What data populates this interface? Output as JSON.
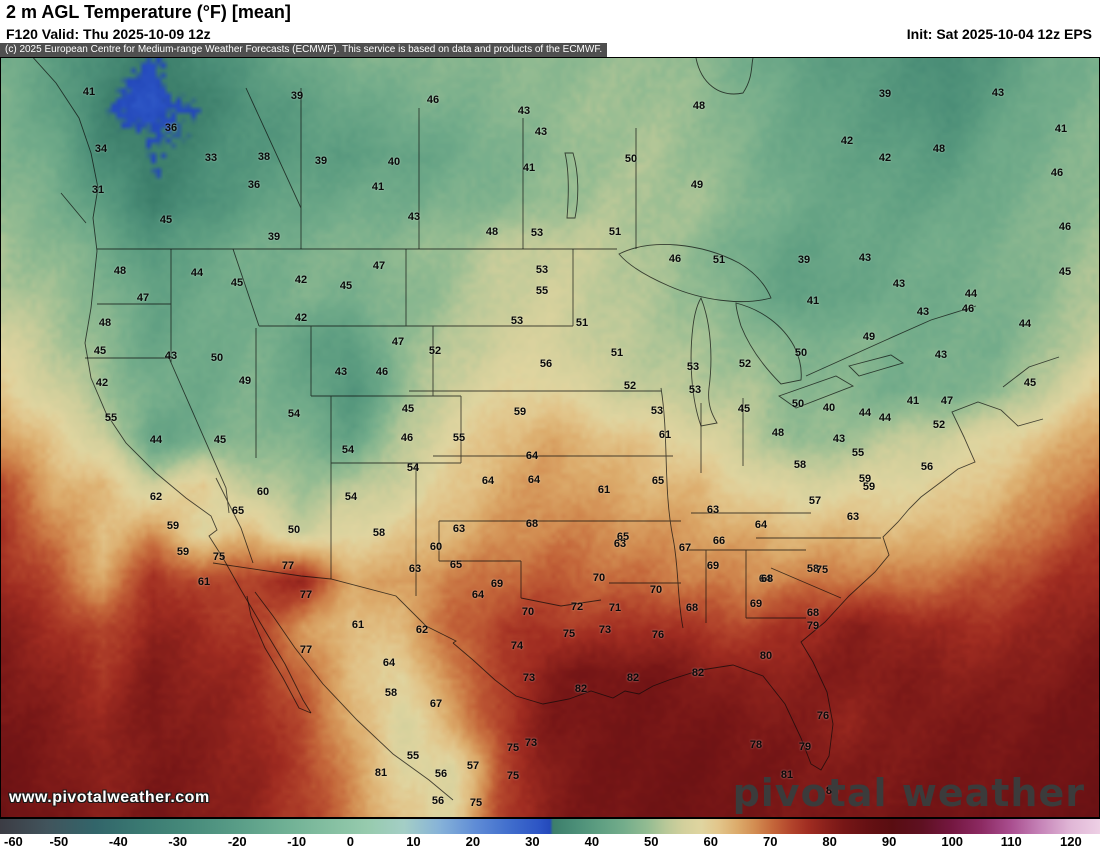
{
  "header": {
    "title": "2 m AGL Temperature (°F) [mean]",
    "valid_line": "F120 Valid: Thu 2025-10-09 12z",
    "init_line": "Init: Sat 2025-10-04 12z EPS",
    "copyright": "(c) 2025 European Centre for Medium-range Weather Forecasts (ECMWF). This service is based on data and products of the ECMWF."
  },
  "watermarks": {
    "site_url": "www.pivotalweather.com",
    "brand": "pivotal weather"
  },
  "colorbar": {
    "unit": "°F",
    "min": -60,
    "max": 120,
    "span": 185,
    "ticks": [
      -60,
      -50,
      -40,
      -30,
      -20,
      -10,
      0,
      10,
      20,
      30,
      40,
      50,
      60,
      70,
      80,
      90,
      100,
      110,
      120
    ]
  },
  "colormap": [
    [
      -60,
      "#3c3c44"
    ],
    [
      -52,
      "#41545c"
    ],
    [
      -44,
      "#32656a"
    ],
    [
      -36,
      "#3a7a72"
    ],
    [
      -28,
      "#478b7b"
    ],
    [
      -20,
      "#599d87"
    ],
    [
      -12,
      "#6fb094"
    ],
    [
      -4,
      "#86c0a2"
    ],
    [
      2,
      "#97cbae"
    ],
    [
      8,
      "#a4cec6"
    ],
    [
      14,
      "#86b2d8"
    ],
    [
      20,
      "#5f8cd6"
    ],
    [
      26,
      "#3f6ccc"
    ],
    [
      31,
      "#2b53c4"
    ],
    [
      32.5,
      "#2449ba"
    ],
    [
      33,
      "#3c7e6b"
    ],
    [
      37,
      "#4c8f78"
    ],
    [
      41,
      "#5f9f82"
    ],
    [
      45,
      "#74ad8b"
    ],
    [
      49,
      "#94bc92"
    ],
    [
      52,
      "#b8c898"
    ],
    [
      55,
      "#d3d09c"
    ],
    [
      58,
      "#e0d5a0"
    ],
    [
      61,
      "#e2c489"
    ],
    [
      64,
      "#dcab6b"
    ],
    [
      67,
      "#d28c51"
    ],
    [
      70,
      "#c4663a"
    ],
    [
      73,
      "#b3452c"
    ],
    [
      76,
      "#a02c21"
    ],
    [
      79,
      "#89201b"
    ],
    [
      82,
      "#761616"
    ],
    [
      86,
      "#651013"
    ],
    [
      90,
      "#590d11"
    ],
    [
      95,
      "#5e1021"
    ],
    [
      100,
      "#741740"
    ],
    [
      105,
      "#8c2a62"
    ],
    [
      110,
      "#a94e8f"
    ],
    [
      115,
      "#c684b8"
    ],
    [
      120,
      "#e0b6d6"
    ],
    [
      125,
      "#eed0e5"
    ]
  ],
  "chart_data": {
    "type": "heatmap",
    "title": "2 m AGL Temperature (°F) [mean]",
    "model": "ECMWF EPS",
    "forecast_hour": "F120",
    "valid": "Thu 2025-10-09 12z",
    "init": "Sat 2025-10-04 12z",
    "units": "°F",
    "colorbar_range": [
      -60,
      120
    ],
    "grid": {
      "note": "coarse 23x17 field of 2m temperature (F) sampled across the map, row 0 = north",
      "values": [
        [
          45,
          41,
          36,
          33,
          36,
          40,
          44,
          46,
          47,
          47,
          48,
          48,
          49,
          50,
          48,
          45,
          42,
          40,
          39,
          36,
          40,
          44,
          46
        ],
        [
          46,
          42,
          34,
          30,
          34,
          38,
          41,
          43,
          45,
          46,
          47,
          49,
          50,
          50,
          49,
          46,
          43,
          41,
          39,
          37,
          42,
          45,
          47
        ],
        [
          47,
          44,
          36,
          33,
          36,
          39,
          40,
          41,
          42,
          44,
          46,
          48,
          50,
          51,
          49,
          46,
          43,
          42,
          41,
          40,
          44,
          46,
          48
        ],
        [
          48,
          46,
          40,
          34,
          37,
          41,
          43,
          44,
          45,
          46,
          47,
          49,
          51,
          51,
          50,
          47,
          44,
          43,
          42,
          43,
          45,
          47,
          49
        ],
        [
          50,
          48,
          45,
          39,
          43,
          45,
          46,
          47,
          48,
          50,
          53,
          54,
          53,
          51,
          48,
          44,
          42,
          43,
          44,
          45,
          46,
          48,
          50
        ],
        [
          52,
          50,
          47,
          42,
          44,
          45,
          46,
          46,
          47,
          50,
          54,
          55,
          53,
          51,
          49,
          45,
          41,
          43,
          44,
          45,
          46,
          48,
          52
        ],
        [
          56,
          52,
          48,
          43,
          44,
          46,
          42,
          40,
          49,
          52,
          55,
          56,
          53,
          52,
          50,
          49,
          46,
          47,
          46,
          45,
          46,
          50,
          55
        ],
        [
          60,
          55,
          50,
          45,
          44,
          46,
          44,
          38,
          48,
          55,
          58,
          59,
          55,
          53,
          52,
          51,
          48,
          47,
          45,
          46,
          48,
          54,
          60
        ],
        [
          66,
          60,
          55,
          42,
          45,
          48,
          46,
          42,
          52,
          58,
          62,
          64,
          62,
          60,
          57,
          53,
          48,
          50,
          53,
          55,
          58,
          62,
          66
        ],
        [
          72,
          64,
          62,
          55,
          60,
          52,
          50,
          52,
          55,
          60,
          64,
          66,
          64,
          63,
          62,
          58,
          56,
          57,
          58,
          59,
          62,
          66,
          70
        ],
        [
          75,
          68,
          62,
          66,
          58,
          62,
          54,
          58,
          60,
          63,
          66,
          68,
          67,
          66,
          65,
          64,
          62,
          63,
          62,
          63,
          66,
          70,
          74
        ],
        [
          76,
          72,
          64,
          76,
          72,
          74,
          77,
          64,
          65,
          68,
          70,
          71,
          70,
          69,
          68,
          67,
          68,
          69,
          68,
          70,
          72,
          75,
          77
        ],
        [
          79,
          76,
          72,
          78,
          76,
          74,
          66,
          61,
          63,
          70,
          74,
          75,
          74,
          76,
          74,
          73,
          76,
          79,
          78,
          76,
          76,
          78,
          80
        ],
        [
          81,
          78,
          75,
          80,
          78,
          76,
          70,
          62,
          58,
          68,
          73,
          80,
          82,
          82,
          80,
          78,
          79,
          80,
          80,
          79,
          79,
          80,
          82
        ],
        [
          82,
          80,
          77,
          81,
          79,
          77,
          72,
          64,
          56,
          64,
          74,
          81,
          82,
          82,
          82,
          81,
          80,
          78,
          80,
          81,
          81,
          82,
          83
        ],
        [
          83,
          81,
          78,
          81,
          80,
          78,
          74,
          66,
          58,
          56,
          72,
          80,
          82,
          83,
          83,
          82,
          81,
          80,
          81,
          82,
          82,
          83,
          84
        ],
        [
          84,
          82,
          79,
          82,
          80,
          78,
          74,
          68,
          60,
          58,
          73,
          80,
          82,
          83,
          83,
          82,
          81,
          81,
          82,
          83,
          83,
          84,
          84
        ]
      ]
    },
    "station_labels": [
      [
        88,
        91,
        41
      ],
      [
        296,
        95,
        39
      ],
      [
        432,
        99,
        46
      ],
      [
        523,
        110,
        43
      ],
      [
        698,
        105,
        48
      ],
      [
        884,
        93,
        39
      ],
      [
        997,
        92,
        43
      ],
      [
        170,
        127,
        36
      ],
      [
        540,
        131,
        43
      ],
      [
        846,
        140,
        42
      ],
      [
        938,
        148,
        48
      ],
      [
        1060,
        128,
        41
      ],
      [
        100,
        148,
        34
      ],
      [
        210,
        157,
        33
      ],
      [
        263,
        156,
        38
      ],
      [
        320,
        160,
        39
      ],
      [
        393,
        161,
        40
      ],
      [
        528,
        167,
        41
      ],
      [
        630,
        158,
        50
      ],
      [
        884,
        157,
        42
      ],
      [
        97,
        189,
        31
      ],
      [
        253,
        184,
        36
      ],
      [
        377,
        186,
        41
      ],
      [
        696,
        184,
        49
      ],
      [
        1056,
        172,
        46
      ],
      [
        165,
        219,
        45
      ],
      [
        413,
        216,
        43
      ],
      [
        491,
        231,
        48
      ],
      [
        536,
        232,
        53
      ],
      [
        614,
        231,
        51
      ],
      [
        273,
        236,
        39
      ],
      [
        119,
        270,
        48
      ],
      [
        196,
        272,
        44
      ],
      [
        378,
        265,
        47
      ],
      [
        541,
        269,
        53
      ],
      [
        674,
        258,
        46
      ],
      [
        718,
        259,
        51
      ],
      [
        803,
        259,
        39
      ],
      [
        864,
        257,
        43
      ],
      [
        1064,
        226,
        46
      ],
      [
        1064,
        271,
        45
      ],
      [
        142,
        297,
        47
      ],
      [
        236,
        282,
        45
      ],
      [
        300,
        279,
        42
      ],
      [
        345,
        285,
        45
      ],
      [
        541,
        290,
        55
      ],
      [
        812,
        300,
        41
      ],
      [
        898,
        283,
        43
      ],
      [
        970,
        293,
        44
      ],
      [
        104,
        322,
        48
      ],
      [
        300,
        317,
        42
      ],
      [
        397,
        341,
        47
      ],
      [
        516,
        320,
        53
      ],
      [
        581,
        322,
        51
      ],
      [
        868,
        336,
        49
      ],
      [
        922,
        311,
        43
      ],
      [
        967,
        308,
        46
      ],
      [
        1024,
        323,
        44
      ],
      [
        99,
        350,
        45
      ],
      [
        170,
        355,
        43
      ],
      [
        216,
        357,
        50
      ],
      [
        434,
        350,
        52
      ],
      [
        545,
        363,
        56
      ],
      [
        616,
        352,
        51
      ],
      [
        692,
        366,
        53
      ],
      [
        744,
        363,
        52
      ],
      [
        800,
        352,
        50
      ],
      [
        940,
        354,
        43
      ],
      [
        101,
        382,
        42
      ],
      [
        244,
        380,
        49
      ],
      [
        340,
        371,
        43
      ],
      [
        381,
        371,
        46
      ],
      [
        629,
        385,
        52
      ],
      [
        694,
        389,
        53
      ],
      [
        797,
        403,
        50
      ],
      [
        828,
        407,
        40
      ],
      [
        864,
        412,
        44
      ],
      [
        912,
        400,
        41
      ],
      [
        946,
        400,
        47
      ],
      [
        1029,
        382,
        45
      ],
      [
        110,
        417,
        55
      ],
      [
        293,
        413,
        54
      ],
      [
        407,
        408,
        45
      ],
      [
        519,
        411,
        59
      ],
      [
        656,
        410,
        53
      ],
      [
        743,
        408,
        45
      ],
      [
        884,
        417,
        44
      ],
      [
        155,
        439,
        44
      ],
      [
        219,
        439,
        45
      ],
      [
        406,
        437,
        46
      ],
      [
        458,
        437,
        55
      ],
      [
        531,
        455,
        64
      ],
      [
        664,
        434,
        61
      ],
      [
        777,
        432,
        48
      ],
      [
        838,
        438,
        43
      ],
      [
        857,
        452,
        55
      ],
      [
        938,
        424,
        52
      ],
      [
        347,
        449,
        54
      ],
      [
        412,
        467,
        54
      ],
      [
        533,
        479,
        64
      ],
      [
        603,
        489,
        61
      ],
      [
        799,
        464,
        58
      ],
      [
        864,
        478,
        59
      ],
      [
        926,
        466,
        56
      ],
      [
        155,
        496,
        62
      ],
      [
        262,
        491,
        60
      ],
      [
        350,
        496,
        54
      ],
      [
        487,
        480,
        64
      ],
      [
        657,
        480,
        65
      ],
      [
        712,
        509,
        63
      ],
      [
        814,
        500,
        57
      ],
      [
        852,
        516,
        63
      ],
      [
        868,
        486,
        59
      ],
      [
        172,
        525,
        59
      ],
      [
        237,
        510,
        65
      ],
      [
        293,
        529,
        50
      ],
      [
        378,
        532,
        58
      ],
      [
        458,
        528,
        63
      ],
      [
        531,
        523,
        68
      ],
      [
        622,
        536,
        65
      ],
      [
        718,
        540,
        66
      ],
      [
        760,
        524,
        64
      ],
      [
        182,
        551,
        59
      ],
      [
        218,
        556,
        75
      ],
      [
        435,
        546,
        60
      ],
      [
        619,
        543,
        63
      ],
      [
        684,
        547,
        67
      ],
      [
        712,
        565,
        69
      ],
      [
        764,
        578,
        64
      ],
      [
        812,
        568,
        58
      ],
      [
        203,
        581,
        61
      ],
      [
        287,
        565,
        77
      ],
      [
        414,
        568,
        63
      ],
      [
        455,
        564,
        65
      ],
      [
        496,
        583,
        69
      ],
      [
        598,
        577,
        70
      ],
      [
        655,
        589,
        70
      ],
      [
        766,
        578,
        68
      ],
      [
        821,
        569,
        75
      ],
      [
        305,
        594,
        77
      ],
      [
        477,
        594,
        64
      ],
      [
        576,
        606,
        72
      ],
      [
        614,
        607,
        71
      ],
      [
        691,
        607,
        68
      ],
      [
        755,
        603,
        69
      ],
      [
        812,
        612,
        68
      ],
      [
        357,
        624,
        61
      ],
      [
        421,
        629,
        62
      ],
      [
        527,
        611,
        70
      ],
      [
        568,
        633,
        75
      ],
      [
        604,
        629,
        73
      ],
      [
        657,
        634,
        76
      ],
      [
        812,
        625,
        79
      ],
      [
        305,
        649,
        77
      ],
      [
        516,
        645,
        74
      ],
      [
        697,
        672,
        82
      ],
      [
        765,
        655,
        80
      ],
      [
        388,
        662,
        64
      ],
      [
        528,
        677,
        73
      ],
      [
        580,
        688,
        82
      ],
      [
        632,
        677,
        82
      ],
      [
        390,
        692,
        58
      ],
      [
        435,
        703,
        67
      ],
      [
        822,
        715,
        76
      ],
      [
        530,
        742,
        73
      ],
      [
        512,
        747,
        75
      ],
      [
        804,
        746,
        79
      ],
      [
        755,
        744,
        78
      ],
      [
        412,
        755,
        55
      ],
      [
        472,
        765,
        57
      ],
      [
        786,
        774,
        81
      ],
      [
        380,
        772,
        81
      ],
      [
        440,
        773,
        56
      ],
      [
        512,
        775,
        75
      ],
      [
        831,
        790,
        83
      ],
      [
        437,
        800,
        56
      ],
      [
        475,
        802,
        75
      ]
    ]
  }
}
